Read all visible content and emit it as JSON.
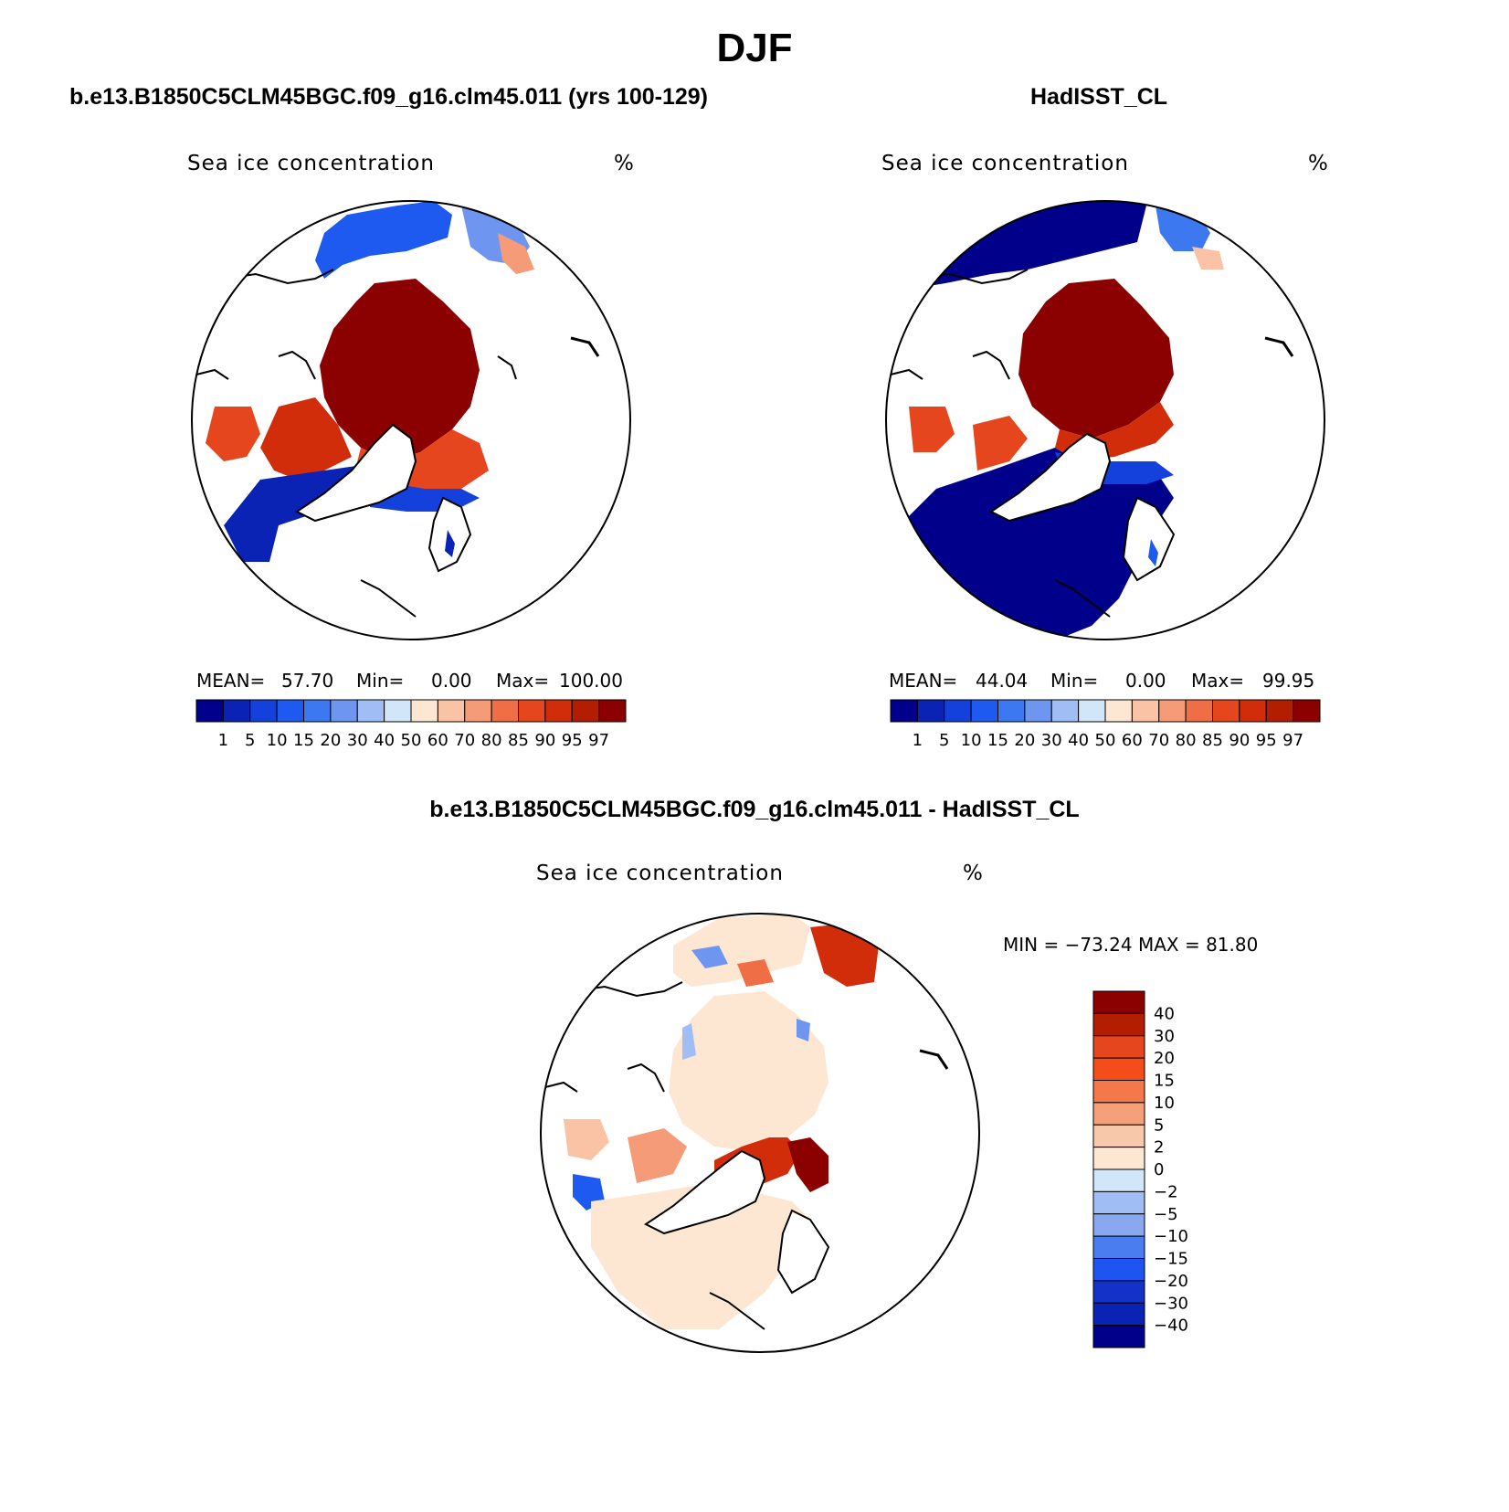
{
  "page": {
    "season": "DJF"
  },
  "panels": {
    "model": {
      "case_title": "b.e13.B1850C5CLM45BGC.f09_g16.clm45.011 (yrs 100-129)",
      "variable": "Sea ice concentration",
      "units": "%",
      "stats": {
        "mean_label": "MEAN=",
        "mean": "57.70",
        "min_label": "Min=",
        "min": "0.00",
        "max_label": "Max=",
        "max": "100.00"
      }
    },
    "obs": {
      "case_title": "HadISST_CL",
      "variable": "Sea ice concentration",
      "units": "%",
      "stats": {
        "mean_label": "MEAN=",
        "mean": "44.04",
        "min_label": "Min=",
        "min": "0.00",
        "max_label": "Max=",
        "max": "99.95"
      }
    },
    "diff": {
      "case_title": "b.e13.B1850C5CLM45BGC.f09_g16.clm45.011 - HadISST_CL",
      "variable": "Sea ice concentration",
      "units": "%",
      "minmax": "MIN = −73.24 MAX =   81.80"
    }
  },
  "colorbar_concentration": {
    "labels": [
      "1",
      "5",
      "10",
      "15",
      "20",
      "30",
      "40",
      "50",
      "60",
      "70",
      "80",
      "85",
      "90",
      "95",
      "97"
    ],
    "colors": [
      "#00008b",
      "#0a23b4",
      "#1440dc",
      "#1e5af0",
      "#3c78f0",
      "#6e96f0",
      "#a0bef5",
      "#d2e6fa",
      "#fde6d2",
      "#fac3a5",
      "#f59b78",
      "#f06e46",
      "#e6461e",
      "#d22d0a",
      "#b41e00",
      "#8b0000"
    ]
  },
  "colorbar_difference": {
    "labels": [
      "40",
      "30",
      "20",
      "15",
      "10",
      "5",
      "2",
      "0",
      "−2",
      "−5",
      "−10",
      "−15",
      "−20",
      "−30",
      "−40"
    ],
    "colors": [
      "#8b0000",
      "#b41e00",
      "#e6461e",
      "#f54d1a",
      "#f5784a",
      "#f5a078",
      "#f8c8aa",
      "#fde6d2",
      "#d2e6fa",
      "#a0bef5",
      "#8aa8f0",
      "#4a7ef0",
      "#1e55f0",
      "#1432c8",
      "#0a23b4",
      "#00008b"
    ]
  }
}
